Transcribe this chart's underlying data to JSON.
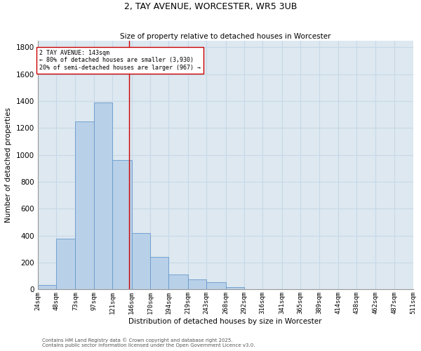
{
  "title": "2, TAY AVENUE, WORCESTER, WR5 3UB",
  "subtitle": "Size of property relative to detached houses in Worcester",
  "xlabel": "Distribution of detached houses by size in Worcester",
  "ylabel": "Number of detached properties",
  "bar_color": "#b8d0e8",
  "bar_edge_color": "#6699cc",
  "grid_color": "#c8d8e8",
  "background_color": "#dde8f0",
  "property_line_x": 143,
  "annotation_text": "2 TAY AVENUE: 143sqm\n← 80% of detached houses are smaller (3,930)\n20% of semi-detached houses are larger (967) →",
  "annotation_box_color": "#ffffff",
  "annotation_box_edge_color": "#cc0000",
  "bins": [
    24,
    48,
    73,
    97,
    121,
    146,
    170,
    194,
    219,
    243,
    268,
    292,
    316,
    341,
    365,
    389,
    414,
    438,
    462,
    487,
    511
  ],
  "values": [
    35,
    380,
    1250,
    1390,
    960,
    420,
    240,
    110,
    75,
    55,
    20,
    5,
    0,
    0,
    0,
    0,
    0,
    0,
    0,
    0
  ],
  "ylim": [
    0,
    1850
  ],
  "yticks": [
    0,
    200,
    400,
    600,
    800,
    1000,
    1200,
    1400,
    1600,
    1800
  ],
  "footer1": "Contains HM Land Registry data © Crown copyright and database right 2025.",
  "footer2": "Contains public sector information licensed under the Open Government Licence v3.0."
}
